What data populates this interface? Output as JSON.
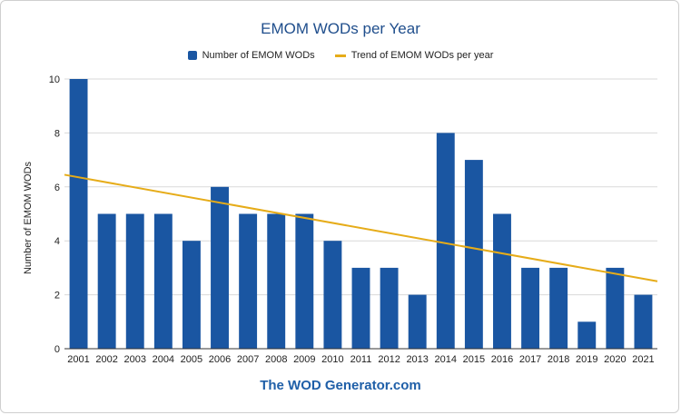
{
  "colors": {
    "bar": "#1a56a2",
    "trend": "#e6ac19",
    "grid": "#d9d9d9",
    "title": "#1f4e8c",
    "footer": "#1f5fa8"
  },
  "footer": "The WOD Generator.com",
  "chart_data": {
    "type": "bar",
    "title": "EMOM WODs per Year",
    "xlabel": "",
    "ylabel": "Number of EMOM WODs",
    "categories": [
      "2001",
      "2002",
      "2003",
      "2004",
      "2005",
      "2006",
      "2007",
      "2008",
      "2009",
      "2010",
      "2011",
      "2012",
      "2013",
      "2014",
      "2015",
      "2016",
      "2017",
      "2018",
      "2019",
      "2020",
      "2021"
    ],
    "series": [
      {
        "name": "Number of EMOM WODs",
        "values": [
          10,
          5,
          5,
          5,
          4,
          6,
          5,
          5,
          5,
          4,
          3,
          3,
          2,
          8,
          7,
          5,
          3,
          3,
          1,
          3,
          2
        ]
      }
    ],
    "trendline": {
      "name": "Trend of EMOM WODs per year",
      "start": 6.45,
      "end": 2.5
    },
    "ylim": [
      0,
      10
    ],
    "yticks": [
      0,
      2,
      4,
      6,
      8,
      10
    ],
    "grid": true,
    "legend": "top"
  }
}
